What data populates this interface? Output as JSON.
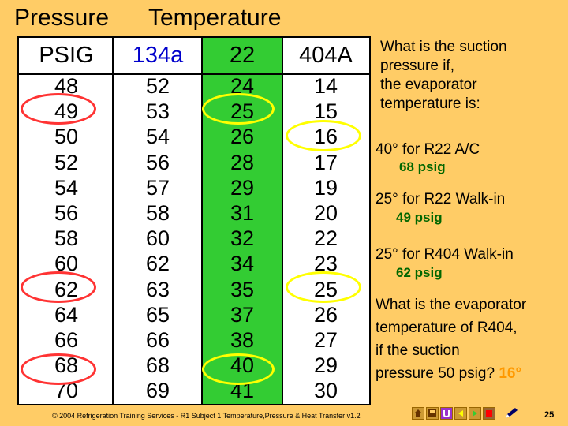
{
  "headers": {
    "pressure": "Pressure",
    "temperature": "Temperature"
  },
  "table": {
    "columns": [
      "PSIG",
      "134a",
      "22",
      "404A"
    ],
    "psig": [
      "48",
      "49",
      "50",
      "52",
      "54",
      "56",
      "58",
      "60",
      "62",
      "64",
      "66",
      "68",
      "70"
    ],
    "r134a": [
      "52",
      "53",
      "54",
      "56",
      "57",
      "58",
      "60",
      "62",
      "63",
      "65",
      "66",
      "68",
      "69"
    ],
    "r22": [
      "24",
      "25",
      "26",
      "28",
      "29",
      "31",
      "32",
      "34",
      "35",
      "37",
      "38",
      "40",
      "41"
    ],
    "r404a": [
      "14",
      "15",
      "16",
      "17",
      "19",
      "20",
      "22",
      "23",
      "25",
      "26",
      "27",
      "29",
      "30"
    ]
  },
  "questions": {
    "intro_line1": "What is the suction",
    "intro_line2": "pressure if,",
    "intro_line3": "the evaporator",
    "intro_line4": "temperature is:",
    "q1": "40° for R22 A/C",
    "a1": "68 psig",
    "q2": "25° for R22 Walk-in",
    "a2": "49 psig",
    "q3": "25° for R404 Walk-in",
    "a3": "62 psig",
    "q4_line1": "What is the evaporator",
    "q4_line2": "temperature of R404,",
    "q4_line3": "if the suction",
    "q4_line4": "pressure 50 psig?",
    "a4": "16°"
  },
  "footer": {
    "copyright": "© 2004 Refrigeration Training Services - R1 Subject 1 Temperature,Pressure & Heat Transfer v1.2",
    "page_number": "25"
  },
  "nav_icons": [
    "home-icon",
    "save-icon",
    "return-icon",
    "back-icon",
    "forward-icon",
    "end-icon",
    "pencil-icon"
  ],
  "colors": {
    "background": "#FFCC66",
    "r22_column": "#33CC33",
    "highlight_red": "#FF3333",
    "highlight_yellow": "#FFFF00",
    "answer_green": "#006600",
    "answer_orange": "#FF9900"
  }
}
